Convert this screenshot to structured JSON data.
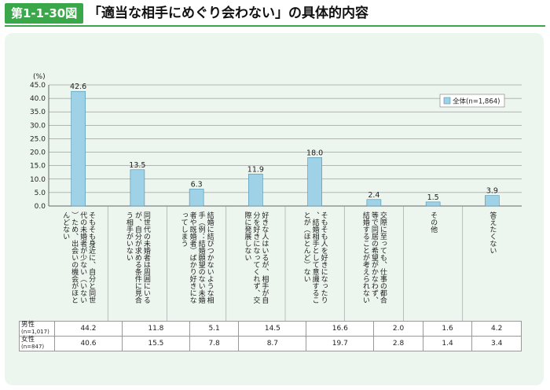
{
  "header": {
    "figure_label": "第1-1-30図",
    "title": "「適当な相手にめぐり会わない」の具体的内容"
  },
  "colors": {
    "accent": "#3aa84a",
    "bar": "#9fd2e6",
    "bar_stroke": "#4a8fb0"
  },
  "chart_data": {
    "type": "bar",
    "ylabel": "(%)",
    "ylim": [
      0,
      45
    ],
    "yticks": [
      "0.0",
      "5.0",
      "10.0",
      "15.0",
      "20.0",
      "25.0",
      "30.0",
      "35.0",
      "40.0",
      "45.0"
    ],
    "grid": true,
    "legend_position": "top-right",
    "categories": [
      "そもそも身近に、自分と同世代の未婚者が少ない（いない）ため、出会いの機会がほとんどない",
      "同世代の未婚者は周囲にいるが、自分が求める条件に見合う相手がいない",
      "結婚に結びつかないような相手（例：結婚願望のない未婚者や既婚者）ばかり好きになってしまう",
      "好きな人はいるが、相手が自分を好きになってくれず、交際に発展しない",
      "そもそも人を好きになったり、結婚相手として意識することが（ほとんど）ない",
      "交際に至っても、仕事の都合等で同居の希望がかなわず、結婚することが考えられない",
      "その他",
      "答えたくない"
    ],
    "series": [
      {
        "name": "全体(n=1,864)",
        "values": [
          42.6,
          13.5,
          6.3,
          11.9,
          18.0,
          2.4,
          1.5,
          3.9
        ],
        "labels": [
          "42.6",
          "13.5",
          "6.3",
          "11.9",
          "18.0",
          "2.4",
          "1.5",
          "3.9"
        ]
      }
    ],
    "table": [
      {
        "label": "男性",
        "sub": "(n=1,017)",
        "values": [
          "44.2",
          "11.8",
          "5.1",
          "14.5",
          "16.6",
          "2.0",
          "1.6",
          "4.2"
        ]
      },
      {
        "label": "女性",
        "sub": "(n=847)",
        "values": [
          "40.6",
          "15.5",
          "7.8",
          "8.7",
          "19.7",
          "2.8",
          "1.4",
          "3.4"
        ]
      }
    ]
  }
}
